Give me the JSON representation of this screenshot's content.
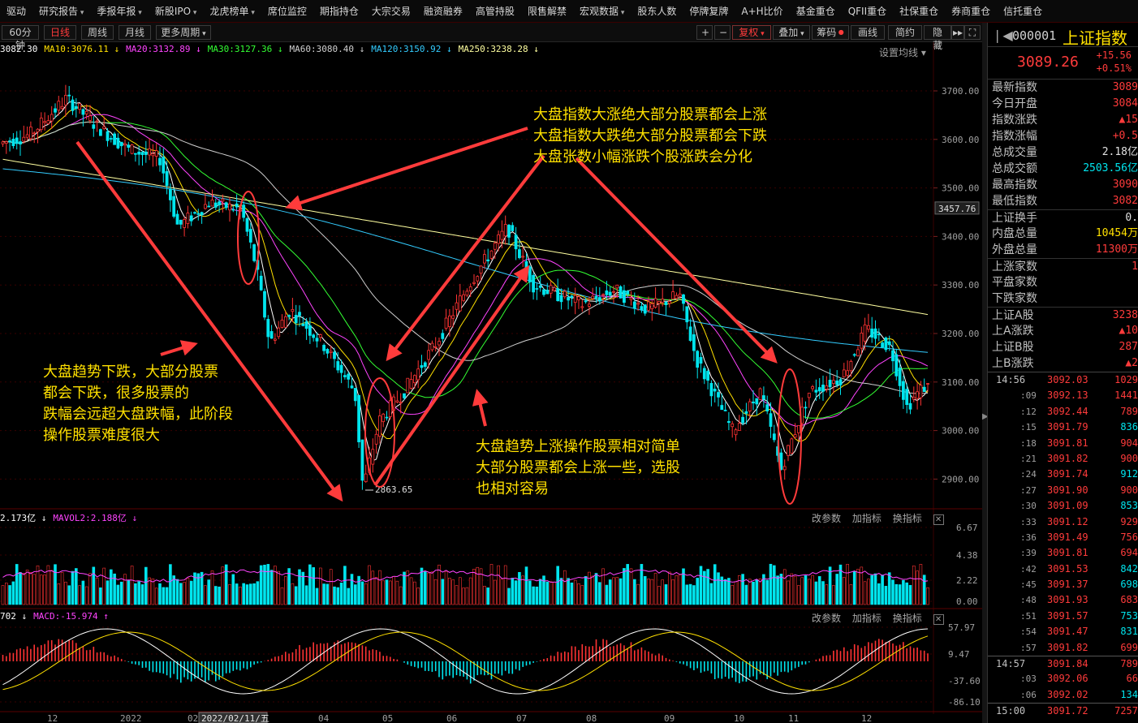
{
  "top_menu": [
    {
      "label": "驱动",
      "dd": false
    },
    {
      "label": "研究报告",
      "dd": true
    },
    {
      "label": "季报年报",
      "dd": true
    },
    {
      "label": "新股IPO",
      "dd": true
    },
    {
      "label": "龙虎榜单",
      "dd": true
    },
    {
      "label": "席位监控",
      "dd": false
    },
    {
      "label": "期指持仓",
      "dd": false
    },
    {
      "label": "大宗交易",
      "dd": false
    },
    {
      "label": "融资融券",
      "dd": false
    },
    {
      "label": "高管持股",
      "dd": false
    },
    {
      "label": "限售解禁",
      "dd": false
    },
    {
      "label": "宏观数据",
      "dd": true
    },
    {
      "label": "股东人数",
      "dd": false
    },
    {
      "label": "停牌复牌",
      "dd": false
    },
    {
      "label": "A+H比价",
      "dd": false
    },
    {
      "label": "基金重仓",
      "dd": false
    },
    {
      "label": "QFII重仓",
      "dd": false
    },
    {
      "label": "社保重仓",
      "dd": false
    },
    {
      "label": "券商重仓",
      "dd": false
    },
    {
      "label": "信托重仓",
      "dd": false
    }
  ],
  "toolbar": {
    "periods": [
      "60分钟",
      "日线",
      "周线",
      "月线",
      "更多周期"
    ],
    "active_period": "日线",
    "plus": "+",
    "minus": "−",
    "fuquan": "复权",
    "overlay": "叠加",
    "chips": "筹码",
    "draw": "画线",
    "simple": "简约",
    "hide": "隐藏",
    "expand": "▸▸",
    "fullscreen": "⛶"
  },
  "ma_legend": [
    {
      "text": "3082.30",
      "color": "#ffffff"
    },
    {
      "text": "MA10:3076.11 ↓",
      "color": "#ffe000"
    },
    {
      "text": "MA20:3132.89 ↓",
      "color": "#ff44ff"
    },
    {
      "text": "MA30:3127.36 ↓",
      "color": "#33ff33"
    },
    {
      "text": "MA60:3080.40 ↓",
      "color": "#d0d0d0"
    },
    {
      "text": "MA120:3150.92 ↓",
      "color": "#33ccff"
    },
    {
      "text": "MA250:3238.28 ↓",
      "color": "#ffffa0"
    }
  ],
  "ma_setting": "设置均线 ▾",
  "price_axis": [
    "3700.00",
    "3600.00",
    "3500.00",
    "3400.00",
    "3300.00",
    "3200.00",
    "3100.00",
    "3000.00",
    "2900.00"
  ],
  "price_marker": "3457.76",
  "low_label": "2863.65",
  "vol_legend": [
    {
      "text": "2.173亿 ↓",
      "color": "#ffffff"
    },
    {
      "text": "MAVOL2:2.188亿 ↓",
      "color": "#ff44ff"
    }
  ],
  "vol_axis": [
    "6.67",
    "4.38",
    "2.22",
    "0.00"
  ],
  "macd_legend": [
    {
      "text": "702 ↓",
      "color": "#ffffff"
    },
    {
      "text": "MACD:-15.974 ↑",
      "color": "#ff44ff"
    }
  ],
  "macd_axis": [
    "57.97",
    "9.47",
    "-37.60",
    "-86.10"
  ],
  "panel_tools": [
    "改参数",
    "加指标",
    "换指标"
  ],
  "date_axis": [
    "12",
    "2022",
    "02",
    "2022/02/11/五",
    "04",
    "05",
    "06",
    "07",
    "08",
    "09",
    "10",
    "11",
    "12"
  ],
  "annotations": {
    "top": [
      "大盘指数大涨绝大部分股票都会上涨",
      "大盘指数大跌绝大部分股票都会下跌",
      "大盘张数小幅涨跌个股涨跌会分化"
    ],
    "left": [
      "大盘趋势下跌，大部分股票",
      "都会下跌，很多股票的",
      "跌幅会远超大盘跌幅，此阶段",
      "操作股票难度很大"
    ],
    "mid": [
      "大盘趋势上涨操作股票相对简单",
      "大部分股票都会上涨一些，选股",
      "也相对容易"
    ]
  },
  "right_panel": {
    "code": "000001",
    "name": "上证指数",
    "price": "3089.26",
    "change": "+15.56",
    "change_pct": "+0.51%",
    "stats": [
      {
        "k": "最新指数",
        "v": "3089",
        "c": "red"
      },
      {
        "k": "今日开盘",
        "v": "3084",
        "c": "red"
      },
      {
        "k": "指数涨跌",
        "v": "▲15",
        "c": "red"
      },
      {
        "k": "指数涨幅",
        "v": "+0.5",
        "c": "red"
      },
      {
        "k": "总成交量",
        "v": "2.18亿",
        "c": "white"
      },
      {
        "k": "总成交额",
        "v": "2503.56亿",
        "c": "cyan"
      },
      {
        "k": "最高指数",
        "v": "3090",
        "c": "red"
      },
      {
        "k": "最低指数",
        "v": "3082",
        "c": "red"
      },
      {
        "k": "上证换手",
        "v": "0.",
        "c": "white",
        "sep": true
      },
      {
        "k": "内盘总量",
        "v": "10454万",
        "c": "yellow"
      },
      {
        "k": "外盘总量",
        "v": "11300万",
        "c": "red"
      },
      {
        "k": "上涨家数",
        "v": "1",
        "c": "red",
        "sep": true
      },
      {
        "k": "平盘家数",
        "v": "",
        "c": "white"
      },
      {
        "k": "下跌家数",
        "v": "",
        "c": "white"
      },
      {
        "k": "上证A股",
        "v": "3238",
        "c": "red",
        "sep": true
      },
      {
        "k": "上A涨跌",
        "v": "▲10",
        "c": "red"
      },
      {
        "k": "上证B股",
        "v": "287",
        "c": "red"
      },
      {
        "k": "上B涨跌",
        "v": "▲2",
        "c": "red"
      }
    ],
    "ticks": [
      {
        "t": "14:56",
        "p": "3092.03",
        "v": "1029",
        "c": "red",
        "main": true
      },
      {
        "t": ":09",
        "p": "3092.13",
        "v": "1441",
        "c": "red"
      },
      {
        "t": ":12",
        "p": "3092.44",
        "v": "789",
        "c": "red"
      },
      {
        "t": ":15",
        "p": "3091.79",
        "v": "836",
        "c": "cyan"
      },
      {
        "t": ":18",
        "p": "3091.81",
        "v": "904",
        "c": "red"
      },
      {
        "t": ":21",
        "p": "3091.82",
        "v": "900",
        "c": "red"
      },
      {
        "t": ":24",
        "p": "3091.74",
        "v": "912",
        "c": "cyan"
      },
      {
        "t": ":27",
        "p": "3091.90",
        "v": "900",
        "c": "red"
      },
      {
        "t": ":30",
        "p": "3091.09",
        "v": "853",
        "c": "cyan"
      },
      {
        "t": ":33",
        "p": "3091.12",
        "v": "929",
        "c": "red"
      },
      {
        "t": ":36",
        "p": "3091.49",
        "v": "756",
        "c": "red"
      },
      {
        "t": ":39",
        "p": "3091.81",
        "v": "694",
        "c": "red"
      },
      {
        "t": ":42",
        "p": "3091.53",
        "v": "842",
        "c": "cyan"
      },
      {
        "t": ":45",
        "p": "3091.37",
        "v": "698",
        "c": "cyan"
      },
      {
        "t": ":48",
        "p": "3091.93",
        "v": "683",
        "c": "red"
      },
      {
        "t": ":51",
        "p": "3091.57",
        "v": "753",
        "c": "cyan"
      },
      {
        "t": ":54",
        "p": "3091.47",
        "v": "831",
        "c": "cyan"
      },
      {
        "t": ":57",
        "p": "3091.82",
        "v": "699",
        "c": "red"
      },
      {
        "t": "14:57",
        "p": "3091.84",
        "v": "789",
        "c": "red",
        "main": true,
        "sep": true
      },
      {
        "t": ":03",
        "p": "3092.06",
        "v": "66",
        "c": "red"
      },
      {
        "t": ":06",
        "p": "3092.02",
        "v": "134",
        "c": "cyan"
      },
      {
        "t": "15:00",
        "p": "3091.72",
        "v": "7257",
        "c": "red",
        "main": true,
        "sep": true
      }
    ]
  }
}
